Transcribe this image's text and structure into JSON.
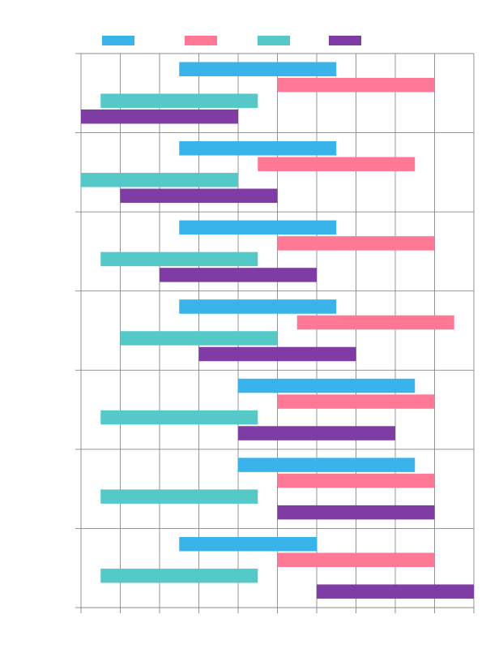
{
  "chart_data": {
    "type": "bar",
    "orientation": "horizontal-floating",
    "title": "",
    "xlabel": "",
    "ylabel": "",
    "grid": true,
    "legend_position": "top",
    "x_range": [
      0,
      10
    ],
    "categories": [
      "",
      "",
      "",
      "",
      "",
      "",
      ""
    ],
    "series": [
      {
        "color": "#38b4ea",
        "ranges": [
          [
            2.5,
            6.5
          ],
          [
            2.5,
            6.5
          ],
          [
            2.5,
            6.5
          ],
          [
            2.5,
            6.5
          ],
          [
            4,
            8.5
          ],
          [
            4,
            8.5
          ],
          [
            2.5,
            6
          ]
        ]
      },
      {
        "color": "#ff7896",
        "ranges": [
          [
            5,
            9
          ],
          [
            4.5,
            8.5
          ],
          [
            5,
            9
          ],
          [
            5.5,
            9.5
          ],
          [
            5,
            9
          ],
          [
            5,
            9
          ],
          [
            5,
            9
          ]
        ]
      },
      {
        "color": "#55c8c8",
        "ranges": [
          [
            0.5,
            4.5
          ],
          [
            0,
            4
          ],
          [
            0.5,
            4.5
          ],
          [
            1,
            5
          ],
          [
            0.5,
            4.5
          ],
          [
            0.5,
            4.5
          ],
          [
            0.5,
            4.5
          ]
        ]
      },
      {
        "color": "#803ca5",
        "ranges": [
          [
            0,
            4
          ],
          [
            1,
            5
          ],
          [
            2,
            6
          ],
          [
            3,
            7
          ],
          [
            4,
            8
          ],
          [
            5,
            9
          ],
          [
            6,
            10
          ]
        ]
      }
    ]
  }
}
